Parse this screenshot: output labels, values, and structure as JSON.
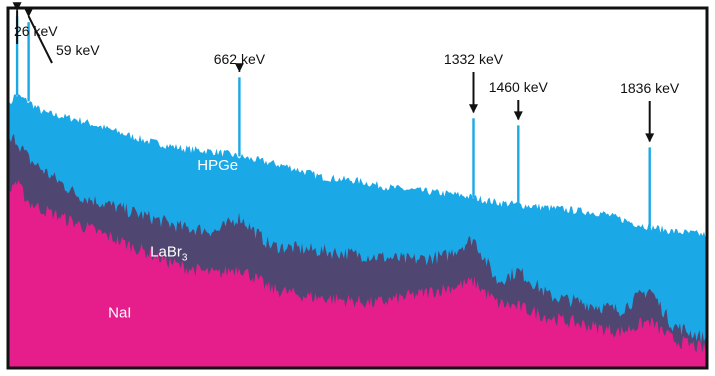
{
  "chart_data": {
    "type": "area",
    "title": "",
    "xlabel": "",
    "ylabel": "",
    "xlim": [
      0,
      2000
    ],
    "ylim": [
      0,
      100
    ],
    "grid": false,
    "series": [
      {
        "name": "HPGe",
        "color": "#1aa9e6",
        "x": [
          0,
          20,
          60,
          100,
          150,
          200,
          300,
          400,
          500,
          600,
          700,
          800,
          900,
          1000,
          1100,
          1200,
          1300,
          1400,
          1500,
          1600,
          1700,
          1800,
          1900,
          2000
        ],
        "y": [
          72,
          76,
          74,
          71,
          70,
          69,
          66,
          63,
          61,
          60,
          58,
          56,
          53,
          52,
          50,
          49,
          48,
          46,
          45,
          44,
          43,
          40,
          38,
          37
        ]
      },
      {
        "name": "LaBr3",
        "color": "#4f4671",
        "x": [
          0,
          20,
          60,
          100,
          200,
          300,
          400,
          500,
          600,
          662,
          750,
          850,
          950,
          1050,
          1150,
          1250,
          1332,
          1400,
          1460,
          1550,
          1650,
          1750,
          1836,
          1900,
          2000
        ],
        "y": [
          62,
          64,
          58,
          55,
          48,
          45,
          42,
          39,
          38,
          42,
          34,
          33,
          32,
          31,
          30,
          31,
          36,
          24,
          27,
          20,
          18,
          16,
          22,
          12,
          8
        ]
      },
      {
        "name": "NaI",
        "color": "#e61e8c",
        "x": [
          0,
          20,
          60,
          100,
          200,
          300,
          400,
          500,
          600,
          662,
          750,
          850,
          950,
          1050,
          1150,
          1250,
          1332,
          1400,
          1460,
          1550,
          1650,
          1750,
          1836,
          1900,
          2000
        ],
        "y": [
          48,
          52,
          46,
          44,
          40,
          36,
          32,
          28,
          26,
          28,
          22,
          20,
          19,
          18,
          20,
          22,
          24,
          18,
          17,
          14,
          12,
          10,
          13,
          8,
          5
        ]
      }
    ],
    "annotations": [
      {
        "text": "26 keV",
        "x": 26
      },
      {
        "text": "59 keV",
        "x": 59
      },
      {
        "text": "662 keV",
        "x": 662
      },
      {
        "text": "1332 keV",
        "x": 1332
      },
      {
        "text": "1460 keV",
        "x": 1460
      },
      {
        "text": "1836 keV",
        "x": 1836
      }
    ],
    "series_labels": [
      {
        "main": "HPGe",
        "sub": ""
      },
      {
        "main": "LaBr",
        "sub": "3"
      },
      {
        "main": "NaI",
        "sub": ""
      }
    ]
  }
}
